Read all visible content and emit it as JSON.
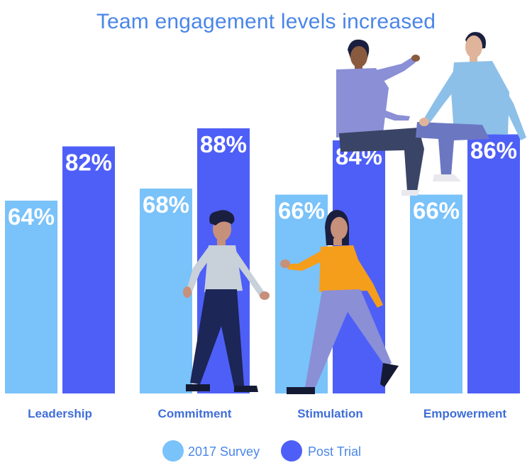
{
  "chart_data": {
    "type": "bar",
    "title": "Team engagement levels increased",
    "xlabel": "",
    "ylabel": "",
    "categories": [
      "Leadership",
      "Commitment",
      "Stimulation",
      "Empowerment"
    ],
    "series": [
      {
        "name": "2017 Survey",
        "values": [
          64,
          68,
          66,
          66
        ],
        "labels": [
          "64%",
          "68%",
          "66%",
          "66%"
        ],
        "color": "#79c2fa"
      },
      {
        "name": "Post Trial",
        "values": [
          82,
          88,
          84,
          86
        ],
        "labels": [
          "82%",
          "88%",
          "84%",
          "86%"
        ],
        "color": "#4e5ff7"
      }
    ],
    "ylim": [
      0,
      100
    ],
    "grid": false,
    "legend_position": "bottom-center"
  },
  "colors": {
    "title": "#4a86e8",
    "category_label": "#3f6ed8",
    "bar_label": "#ffffff"
  }
}
